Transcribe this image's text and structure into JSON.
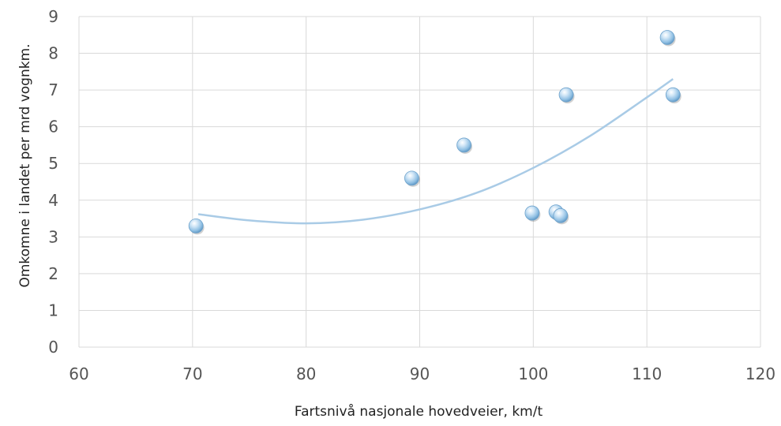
{
  "chart_data": {
    "type": "scatter",
    "title": "",
    "xlabel": "Fartsnivå nasjonale hovedveier, km/t",
    "ylabel": "Omkomne i landet per mrd vognkm.",
    "xlim": [
      60,
      120
    ],
    "ylim": [
      0,
      9
    ],
    "xticks": [
      60,
      70,
      80,
      90,
      100,
      110,
      120
    ],
    "yticks": [
      0,
      1,
      2,
      3,
      4,
      5,
      6,
      7,
      8,
      9
    ],
    "grid": true,
    "legend": "none",
    "marker_color": "#8fbfe3",
    "trendline_color": "#a9cbe6",
    "series": [
      {
        "points": [
          {
            "x": 70.3,
            "y": 3.3
          },
          {
            "x": 89.3,
            "y": 4.6
          },
          {
            "x": 93.9,
            "y": 5.5
          },
          {
            "x": 99.9,
            "y": 3.65
          },
          {
            "x": 102.0,
            "y": 3.68
          },
          {
            "x": 102.4,
            "y": 3.58
          },
          {
            "x": 102.9,
            "y": 6.87
          },
          {
            "x": 111.8,
            "y": 8.43
          },
          {
            "x": 112.3,
            "y": 6.87
          }
        ]
      }
    ],
    "trendline": {
      "type": "polynomial",
      "order": 2,
      "points": [
        {
          "x": 70.5,
          "y": 3.62
        },
        {
          "x": 75,
          "y": 3.45
        },
        {
          "x": 80,
          "y": 3.37
        },
        {
          "x": 85,
          "y": 3.47
        },
        {
          "x": 90,
          "y": 3.75
        },
        {
          "x": 95,
          "y": 4.2
        },
        {
          "x": 100,
          "y": 4.88
        },
        {
          "x": 105,
          "y": 5.75
        },
        {
          "x": 110,
          "y": 6.8
        },
        {
          "x": 112.3,
          "y": 7.3
        }
      ]
    }
  }
}
